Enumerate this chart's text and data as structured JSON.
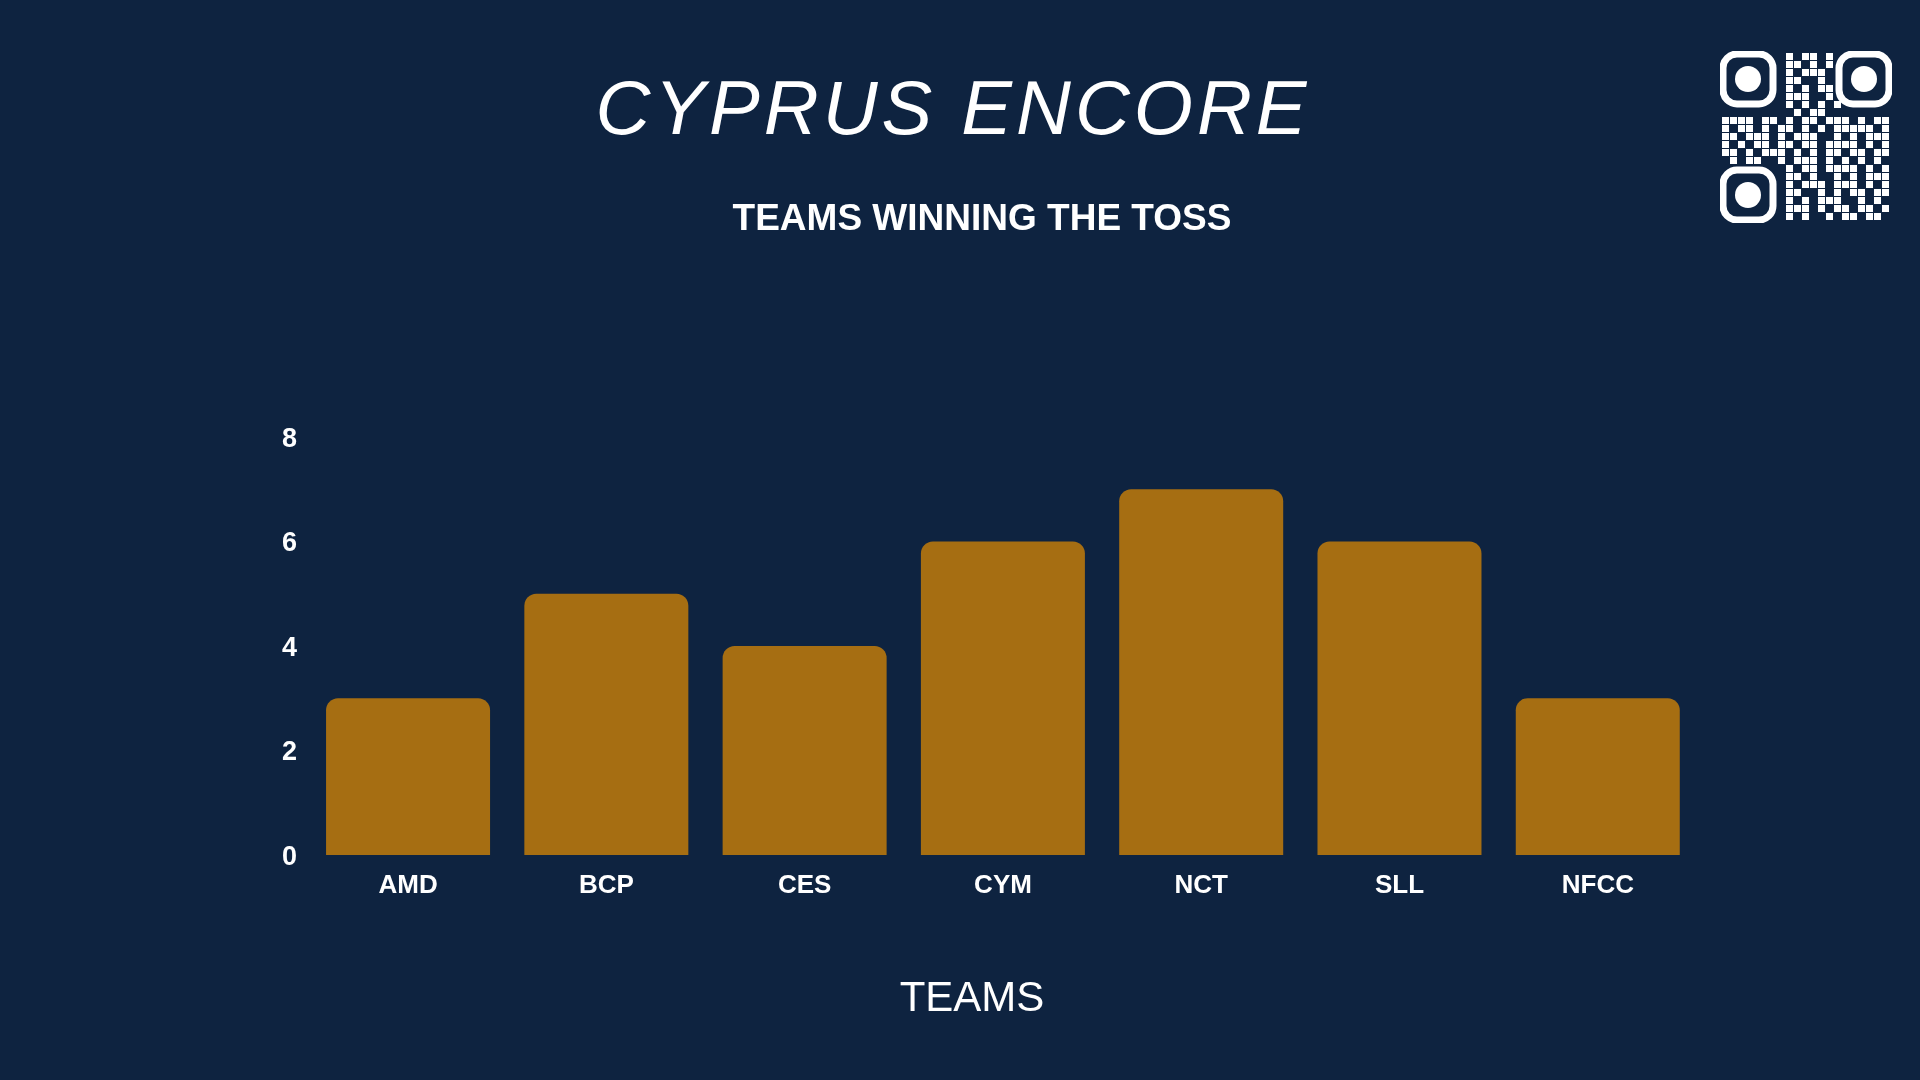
{
  "chart_data": {
    "type": "bar",
    "title": "CYPRUS ENCORE",
    "subtitle": "TEAMS WINNING THE TOSS",
    "xlabel": "TEAMS",
    "categories": [
      "AMD",
      "BCP",
      "CES",
      "CYM",
      "NCT",
      "SLL",
      "NFCC"
    ],
    "values": [
      3,
      5,
      4,
      6,
      7,
      6,
      3
    ],
    "color": "#a66e12",
    "ylim": [
      0,
      8
    ],
    "yticks": [
      0,
      2,
      4,
      6,
      8
    ]
  }
}
